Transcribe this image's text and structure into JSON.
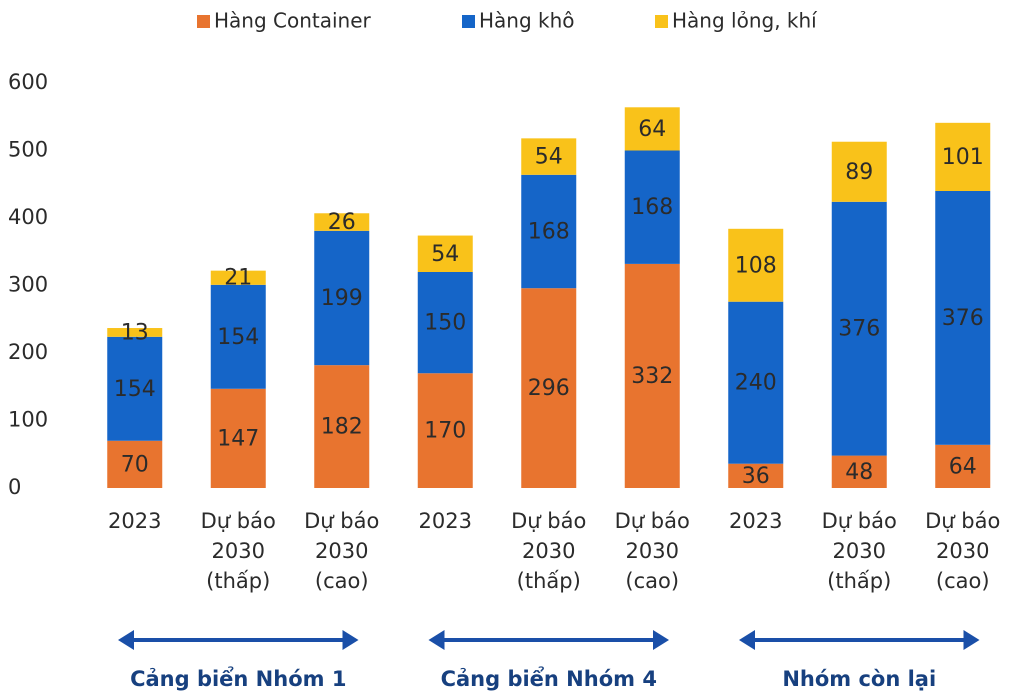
{
  "chart_data": {
    "type": "stacked_bar",
    "categories": [
      [
        "2023"
      ],
      [
        "Dự báo",
        "2030",
        "(thấp)"
      ],
      [
        "Dự báo",
        "2030",
        "(cao)"
      ],
      [
        "2023"
      ],
      [
        "Dự báo",
        "2030",
        "(thấp)"
      ],
      [
        "Dự báo",
        "2030",
        "(cao)"
      ],
      [
        "2023"
      ],
      [
        "Dự báo",
        "2030",
        "(thấp)"
      ],
      [
        "Dự báo",
        "2030",
        "(cao)"
      ]
    ],
    "series": [
      {
        "name": "Hàng Container",
        "color": "#e8742f",
        "values": [
          70,
          147,
          182,
          170,
          296,
          332,
          36,
          48,
          64
        ]
      },
      {
        "name": "Hàng khô",
        "color": "#1565c8",
        "values": [
          154,
          154,
          199,
          150,
          168,
          168,
          240,
          376,
          376
        ]
      },
      {
        "name": "Hàng lỏng, khí",
        "color": "#f9c21a",
        "values": [
          13,
          21,
          26,
          54,
          54,
          64,
          108,
          89,
          101
        ]
      }
    ],
    "groups": [
      "Cảng biển Nhóm 1",
      "Cảng biển Nhóm 4",
      "Nhóm còn lại"
    ],
    "ylim": [
      0,
      600
    ],
    "yticks": [
      0,
      100,
      200,
      300,
      400,
      500,
      600
    ],
    "grid": false,
    "legend": "top"
  }
}
